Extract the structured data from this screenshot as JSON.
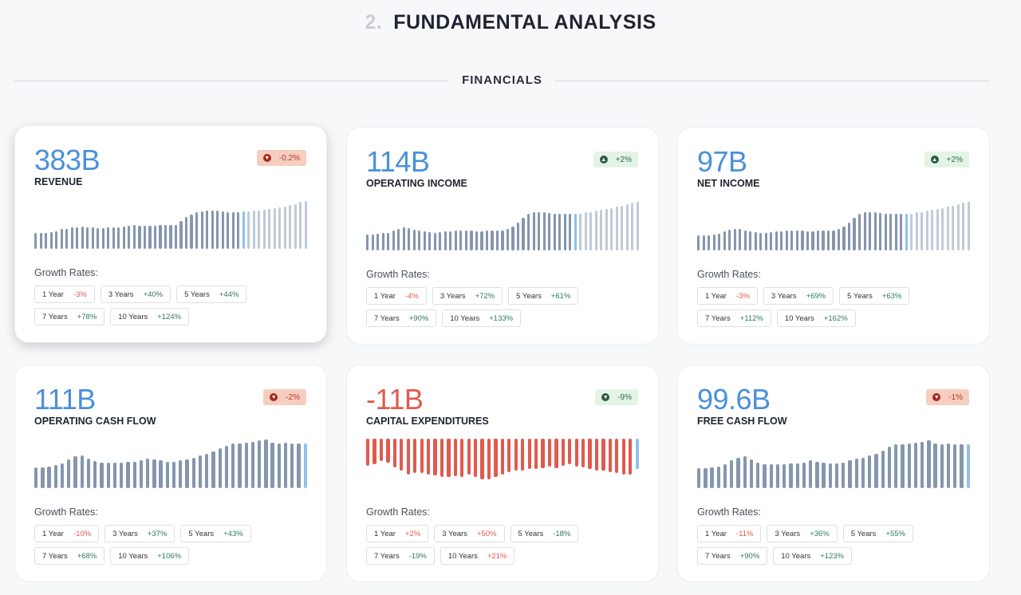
{
  "heading": {
    "number": "2.",
    "title": "FUNDAMENTAL ANALYSIS"
  },
  "section": "FINANCIALS",
  "growth_label": "Growth Rates:",
  "colors": {
    "value_blue": "#4a90d9",
    "value_red": "#e05a4e",
    "positive": "#2e7a55",
    "negative": "#e05a4e",
    "bar": "#8596ad",
    "bar_current": "#90c0ec",
    "bar_forecast": "#c0cad8"
  },
  "cards": [
    {
      "value": "383B",
      "name": "REVENUE",
      "badge": {
        "text": "-0.2%",
        "tone": "red",
        "icon": "chevron-down-circle-icon"
      },
      "bars": {
        "past": [
          33,
          33,
          33,
          34,
          35,
          40,
          41,
          43,
          44,
          45,
          44,
          43,
          42,
          42,
          43,
          43,
          44,
          45,
          46,
          48,
          47,
          47,
          47,
          47,
          48,
          48,
          49,
          49,
          56,
          64,
          70,
          74,
          76,
          77,
          77,
          77,
          76,
          75,
          75,
          75
        ],
        "current": 76,
        "forecast": [
          76,
          77,
          78,
          79,
          80,
          82,
          84,
          86,
          88,
          91,
          95,
          97
        ]
      },
      "rates": [
        {
          "label": "1 Year",
          "value": "-3%",
          "tone": "n"
        },
        {
          "label": "3 Years",
          "value": "+40%",
          "tone": "p"
        },
        {
          "label": "5 Years",
          "value": "+44%",
          "tone": "p"
        },
        {
          "label": "7 Years",
          "value": "+78%",
          "tone": "p"
        },
        {
          "label": "10 Years",
          "value": "+124%",
          "tone": "p"
        }
      ]
    },
    {
      "value": "114B",
      "name": "OPERATING INCOME",
      "badge": {
        "text": "+2%",
        "tone": "green",
        "icon": "chevron-up-circle-icon"
      },
      "bars": {
        "past": [
          33,
          33,
          34,
          35,
          36,
          40,
          44,
          46,
          45,
          42,
          40,
          38,
          37,
          36,
          37,
          38,
          39,
          40,
          40,
          41,
          40,
          39,
          39,
          40,
          40,
          41,
          41,
          44,
          48,
          56,
          66,
          74,
          78,
          78,
          77,
          76,
          75,
          74,
          74,
          74
        ],
        "current": 75,
        "forecast": [
          75,
          77,
          78,
          80,
          82,
          84,
          86,
          88,
          90,
          93,
          96,
          98
        ]
      },
      "rates": [
        {
          "label": "1 Year",
          "value": "-4%",
          "tone": "n"
        },
        {
          "label": "3 Years",
          "value": "+72%",
          "tone": "p"
        },
        {
          "label": "5 Years",
          "value": "+61%",
          "tone": "p"
        },
        {
          "label": "7 Years",
          "value": "+90%",
          "tone": "p"
        },
        {
          "label": "10 Years",
          "value": "+133%",
          "tone": "p"
        }
      ]
    },
    {
      "value": "97B",
      "name": "NET INCOME",
      "badge": {
        "text": "+2%",
        "tone": "green",
        "icon": "chevron-up-circle-icon"
      },
      "bars": {
        "past": [
          30,
          30,
          31,
          32,
          34,
          38,
          42,
          44,
          43,
          40,
          38,
          37,
          36,
          36,
          37,
          38,
          39,
          40,
          40,
          41,
          40,
          39,
          39,
          40,
          40,
          41,
          41,
          44,
          48,
          56,
          66,
          74,
          78,
          78,
          77,
          76,
          75,
          74,
          74,
          74
        ],
        "current": 75,
        "forecast": [
          75,
          77,
          78,
          80,
          82,
          84,
          86,
          88,
          90,
          93,
          96,
          98
        ]
      },
      "rates": [
        {
          "label": "1 Year",
          "value": "-3%",
          "tone": "n"
        },
        {
          "label": "3 Years",
          "value": "+69%",
          "tone": "p"
        },
        {
          "label": "5 Years",
          "value": "+63%",
          "tone": "p"
        },
        {
          "label": "7 Years",
          "value": "+112%",
          "tone": "p"
        },
        {
          "label": "10 Years",
          "value": "+162%",
          "tone": "p"
        }
      ]
    },
    {
      "value": "111B",
      "name": "OPERATING CASH FLOW",
      "badge": {
        "text": "-2%",
        "tone": "red",
        "icon": "chevron-down-circle-icon"
      },
      "bars": {
        "past": [
          42,
          42,
          44,
          46,
          50,
          58,
          64,
          66,
          60,
          55,
          52,
          52,
          52,
          52,
          54,
          54,
          56,
          60,
          58,
          56,
          54,
          54,
          56,
          58,
          62,
          66,
          70,
          74,
          80,
          86,
          90,
          90,
          92,
          94,
          96,
          98,
          92,
          90,
          92,
          90,
          90
        ],
        "current": 90,
        "forecast": []
      },
      "rates": [
        {
          "label": "1 Year",
          "value": "-10%",
          "tone": "n"
        },
        {
          "label": "3 Years",
          "value": "+37%",
          "tone": "p"
        },
        {
          "label": "5 Years",
          "value": "+43%",
          "tone": "p"
        },
        {
          "label": "7 Years",
          "value": "+68%",
          "tone": "p"
        },
        {
          "label": "10 Years",
          "value": "+106%",
          "tone": "p"
        }
      ]
    },
    {
      "value": "-11B",
      "name": "CAPITAL EXPENDITURES",
      "negative": true,
      "badge": {
        "text": "-9%",
        "tone": "green",
        "icon": "chevron-down-circle-icon"
      },
      "bars": {
        "past": [
          55,
          52,
          45,
          48,
          58,
          65,
          72,
          70,
          70,
          72,
          74,
          78,
          78,
          76,
          78,
          73,
          78,
          82,
          82,
          78,
          72,
          68,
          65,
          65,
          62,
          62,
          60,
          56,
          60,
          55,
          52,
          56,
          58,
          62,
          65,
          65,
          68,
          70,
          72,
          72
        ],
        "current": 62,
        "forecast": []
      },
      "rates": [
        {
          "label": "1 Year",
          "value": "+2%",
          "tone": "n"
        },
        {
          "label": "3 Years",
          "value": "+50%",
          "tone": "n"
        },
        {
          "label": "5 Years",
          "value": "-18%",
          "tone": "p"
        },
        {
          "label": "7 Years",
          "value": "-19%",
          "tone": "p"
        },
        {
          "label": "10 Years",
          "value": "+21%",
          "tone": "n"
        }
      ]
    },
    {
      "value": "99.6B",
      "name": "FREE CASH FLOW",
      "badge": {
        "text": "-1%",
        "tone": "red",
        "icon": "chevron-down-circle-icon"
      },
      "bars": {
        "past": [
          40,
          40,
          42,
          44,
          48,
          56,
          62,
          64,
          58,
          52,
          48,
          48,
          48,
          48,
          50,
          50,
          52,
          56,
          54,
          52,
          50,
          50,
          52,
          56,
          60,
          62,
          66,
          70,
          76,
          84,
          88,
          88,
          90,
          92,
          94,
          96,
          90,
          88,
          90,
          88,
          88
        ],
        "current": 88,
        "forecast": []
      },
      "rates": [
        {
          "label": "1 Year",
          "value": "-11%",
          "tone": "n"
        },
        {
          "label": "3 Years",
          "value": "+36%",
          "tone": "p"
        },
        {
          "label": "5 Years",
          "value": "+55%",
          "tone": "p"
        },
        {
          "label": "7 Years",
          "value": "+90%",
          "tone": "p"
        },
        {
          "label": "10 Years",
          "value": "+123%",
          "tone": "p"
        }
      ]
    }
  ]
}
